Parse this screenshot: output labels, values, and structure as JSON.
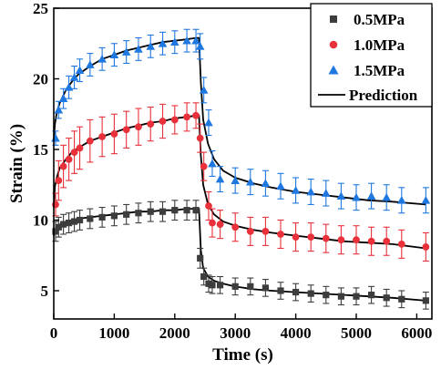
{
  "chart_data": {
    "type": "scatter",
    "xlabel": "Time (s)",
    "ylabel": "Strain (%)",
    "xlim": [
      0,
      6250
    ],
    "ylim": [
      3,
      25
    ],
    "xticks": [
      0,
      1000,
      2000,
      3000,
      4000,
      5000,
      6000
    ],
    "yticks": [
      5,
      10,
      15,
      20,
      25
    ],
    "grid": false,
    "legend_position": "top-right",
    "series": [
      {
        "name": "0.5MPa",
        "marker": "square",
        "color": "#3d3d3d",
        "x": [
          30,
          80,
          160,
          250,
          340,
          430,
          600,
          800,
          1000,
          1200,
          1400,
          1600,
          1800,
          2000,
          2200,
          2350,
          2420,
          2480,
          2560,
          2620,
          2750,
          3000,
          3250,
          3500,
          3750,
          4000,
          4250,
          4500,
          4750,
          5000,
          5250,
          5500,
          5750,
          6150
        ],
        "y": [
          9.2,
          9.5,
          9.7,
          9.8,
          9.9,
          10.0,
          10.1,
          10.2,
          10.3,
          10.4,
          10.5,
          10.6,
          10.6,
          10.7,
          10.7,
          10.7,
          7.3,
          6.0,
          5.5,
          5.4,
          5.4,
          5.3,
          5.3,
          5.2,
          5.0,
          4.9,
          4.8,
          4.7,
          4.6,
          4.6,
          4.7,
          4.5,
          4.4,
          4.3
        ],
        "err": [
          0.7,
          0.7,
          0.7,
          0.7,
          0.7,
          0.7,
          0.7,
          0.7,
          0.7,
          0.7,
          0.7,
          0.7,
          0.7,
          0.7,
          0.7,
          0.7,
          0.7,
          0.6,
          0.6,
          0.6,
          0.6,
          0.6,
          0.6,
          0.6,
          0.6,
          0.6,
          0.6,
          0.6,
          0.6,
          0.6,
          0.6,
          0.6,
          0.6,
          0.6
        ]
      },
      {
        "name": "1.0MPa",
        "marker": "circle",
        "color": "#e8313a",
        "x": [
          30,
          80,
          160,
          250,
          340,
          430,
          600,
          800,
          1000,
          1200,
          1400,
          1600,
          1800,
          2000,
          2200,
          2350,
          2420,
          2480,
          2560,
          2620,
          2750,
          3000,
          3250,
          3500,
          3750,
          4000,
          4250,
          4500,
          4750,
          5000,
          5250,
          5500,
          5750,
          6150
        ],
        "y": [
          11.1,
          12.8,
          13.8,
          14.3,
          14.8,
          15.1,
          15.6,
          15.9,
          16.1,
          16.4,
          16.6,
          16.8,
          17.0,
          17.1,
          17.3,
          17.4,
          15.8,
          13.8,
          11.0,
          9.8,
          9.7,
          9.5,
          9.2,
          9.2,
          9.0,
          8.8,
          8.8,
          8.7,
          8.6,
          8.6,
          8.5,
          8.5,
          8.3,
          8.1
        ],
        "err": [
          0.8,
          1.4,
          1.5,
          1.5,
          1.5,
          1.5,
          1.5,
          1.4,
          1.4,
          1.3,
          1.3,
          1.2,
          1.2,
          1.0,
          1.0,
          0.9,
          1.0,
          1.0,
          1.0,
          1.0,
          1.0,
          1.0,
          1.0,
          1.0,
          1.0,
          1.0,
          1.0,
          1.0,
          1.0,
          1.0,
          1.0,
          1.0,
          1.0,
          1.0
        ]
      },
      {
        "name": "1.5MPa",
        "marker": "triangle",
        "color": "#1f78e0",
        "x": [
          30,
          80,
          160,
          250,
          340,
          430,
          600,
          800,
          1000,
          1200,
          1400,
          1600,
          1800,
          2000,
          2200,
          2350,
          2420,
          2480,
          2560,
          2620,
          2750,
          3000,
          3250,
          3500,
          3750,
          4000,
          4250,
          4500,
          4750,
          5000,
          5250,
          5500,
          5750,
          6150
        ],
        "y": [
          15.8,
          17.8,
          18.6,
          19.4,
          20.1,
          20.6,
          21.0,
          21.4,
          21.7,
          21.9,
          22.1,
          22.3,
          22.5,
          22.6,
          22.7,
          22.7,
          22.3,
          19.2,
          16.9,
          14.0,
          12.9,
          12.8,
          12.7,
          12.6,
          12.4,
          12.1,
          12.0,
          11.9,
          11.7,
          11.6,
          11.7,
          11.6,
          11.4,
          11.4
        ],
        "err": [
          0.5,
          0.6,
          0.7,
          0.8,
          0.8,
          0.8,
          0.8,
          0.8,
          0.8,
          0.8,
          0.8,
          0.8,
          0.8,
          0.8,
          0.8,
          0.8,
          0.9,
          0.9,
          0.9,
          0.9,
          0.9,
          0.9,
          0.9,
          0.9,
          0.9,
          0.9,
          0.9,
          0.9,
          0.9,
          0.9,
          0.9,
          0.9,
          0.9,
          0.9
        ]
      }
    ],
    "prediction": {
      "name": "Prediction",
      "color": "#000000",
      "curves": [
        {
          "x": [
            0,
            20,
            50,
            100,
            200,
            300,
            400,
            600,
            800,
            1000,
            1200,
            1400,
            1600,
            1800,
            2000,
            2200,
            2350,
            2400,
            2430,
            2470,
            2550,
            2650,
            2800,
            3000,
            3300,
            3600,
            4000,
            4400,
            4800,
            5200,
            5600,
            6150
          ],
          "y": [
            8.9,
            9.3,
            9.5,
            9.7,
            9.9,
            10.0,
            10.1,
            10.2,
            10.3,
            10.4,
            10.5,
            10.6,
            10.6,
            10.7,
            10.7,
            10.8,
            10.8,
            10.8,
            7.9,
            6.6,
            6.0,
            5.7,
            5.5,
            5.3,
            5.1,
            5.0,
            4.9,
            4.8,
            4.7,
            4.6,
            4.5,
            4.3
          ]
        },
        {
          "x": [
            0,
            20,
            50,
            100,
            200,
            300,
            400,
            600,
            800,
            1000,
            1200,
            1400,
            1600,
            1800,
            2000,
            2200,
            2350,
            2400,
            2430,
            2470,
            2550,
            2650,
            2800,
            3000,
            3300,
            3600,
            4000,
            4400,
            4800,
            5200,
            5600,
            6150
          ],
          "y": [
            11.0,
            12.4,
            13.0,
            13.7,
            14.3,
            14.8,
            15.1,
            15.6,
            15.9,
            16.2,
            16.5,
            16.7,
            16.9,
            17.0,
            17.2,
            17.3,
            17.4,
            17.4,
            14.6,
            12.5,
            11.1,
            10.4,
            9.9,
            9.6,
            9.3,
            9.1,
            8.9,
            8.7,
            8.5,
            8.4,
            8.3,
            8.0
          ]
        },
        {
          "x": [
            0,
            20,
            50,
            100,
            200,
            300,
            400,
            600,
            800,
            1000,
            1200,
            1400,
            1600,
            1800,
            2000,
            2200,
            2350,
            2400,
            2430,
            2470,
            2550,
            2650,
            2800,
            3000,
            3300,
            3600,
            4000,
            4400,
            4800,
            5200,
            5600,
            6150
          ],
          "y": [
            15.7,
            16.8,
            17.6,
            18.3,
            19.2,
            19.8,
            20.3,
            20.9,
            21.4,
            21.7,
            22.0,
            22.2,
            22.4,
            22.6,
            22.7,
            22.8,
            22.9,
            22.9,
            19.8,
            17.1,
            15.4,
            14.3,
            13.5,
            13.0,
            12.6,
            12.3,
            12.0,
            11.8,
            11.6,
            11.4,
            11.3,
            11.1
          ]
        }
      ]
    }
  }
}
